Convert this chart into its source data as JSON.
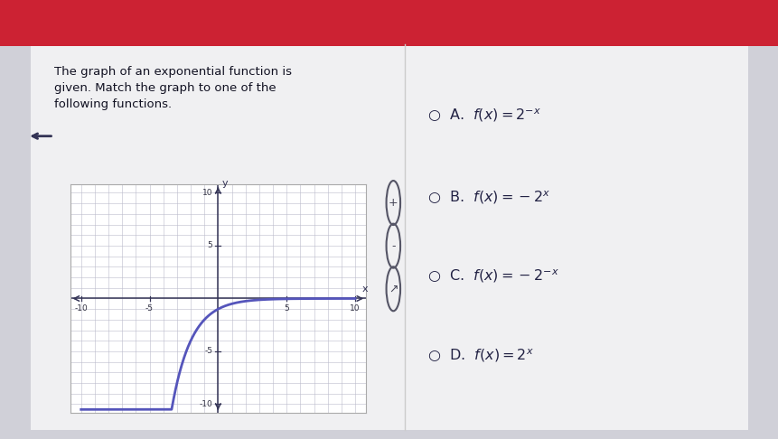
{
  "curve_color": "#5555bb",
  "grid_color": "#bbbbcc",
  "axis_color": "#333355",
  "bg_outer": "#d0d0d8",
  "bg_page": "#f0f0f2",
  "bg_graph": "#ffffff",
  "header_color": "#cc2233",
  "text_color": "#111122",
  "option_color": "#222244",
  "xlim": [
    -10,
    10
  ],
  "ylim": [
    -10,
    10
  ],
  "title_text": "The graph of an exponential function is\ngiven. Match the graph to one of the\nfollowing functions.",
  "options": [
    "A.\\;\\; f(x)=2^{-x}",
    "B.\\;\\; f(x)=-2^{x}",
    "C.\\;\\; f(x)=-2^{-x}",
    "D.\\;\\; f(x)=2^{x}"
  ]
}
